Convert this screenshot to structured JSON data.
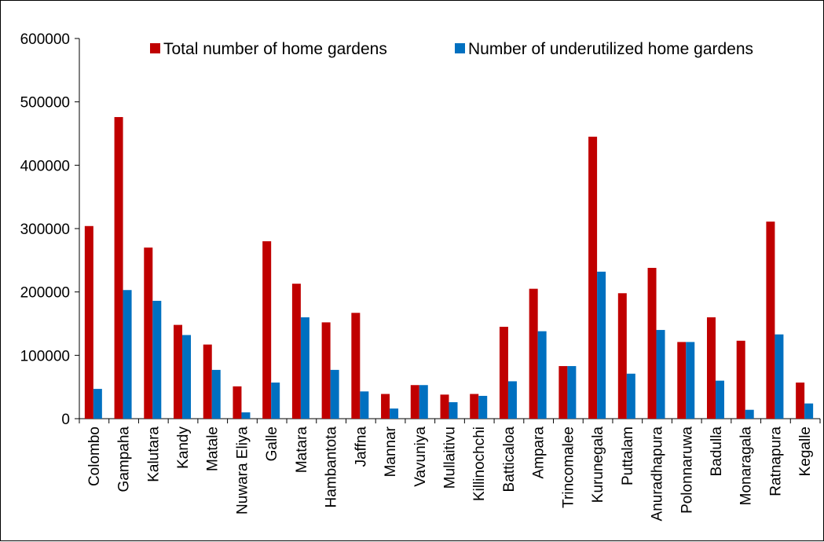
{
  "chart_data": {
    "type": "bar",
    "title": "",
    "xlabel": "",
    "ylabel": "",
    "ylim": [
      0,
      600000
    ],
    "yticks": [
      0,
      100000,
      200000,
      300000,
      400000,
      500000,
      600000
    ],
    "grid": false,
    "legend_position": "top-right",
    "categories": [
      "Colombo",
      "Gampaha",
      "Kalutara",
      "Kandy",
      "Matale",
      "Nuwara Eliya",
      "Galle",
      "Matara",
      "Hambantota",
      "Jaffna",
      "Mannar",
      "Vavuniya",
      "Mullaitivu",
      "Killinochchi",
      "Batticaloa",
      "Ampara",
      "Trincomalee",
      "Kurunegala",
      "Puttalam",
      "Anuradhapura",
      "Polonnaruwa",
      "Badulla",
      "Monaragala",
      "Ratnapura",
      "Kegalle"
    ],
    "series": [
      {
        "name": "Total number of home gardens",
        "color": "#c00000",
        "values": [
          304000,
          476000,
          270000,
          148000,
          117000,
          51000,
          280000,
          213000,
          152000,
          167000,
          39000,
          53000,
          38000,
          39000,
          145000,
          205000,
          83000,
          445000,
          198000,
          238000,
          121000,
          160000,
          123000,
          311000,
          57000
        ]
      },
      {
        "name": "Number of underutilized home gardens",
        "color": "#0070c0",
        "values": [
          47000,
          203000,
          186000,
          132000,
          77000,
          10000,
          57000,
          160000,
          77000,
          43000,
          16000,
          53000,
          26000,
          36000,
          59000,
          138000,
          83000,
          232000,
          71000,
          140000,
          121000,
          60000,
          14000,
          133000,
          24000
        ]
      }
    ]
  }
}
